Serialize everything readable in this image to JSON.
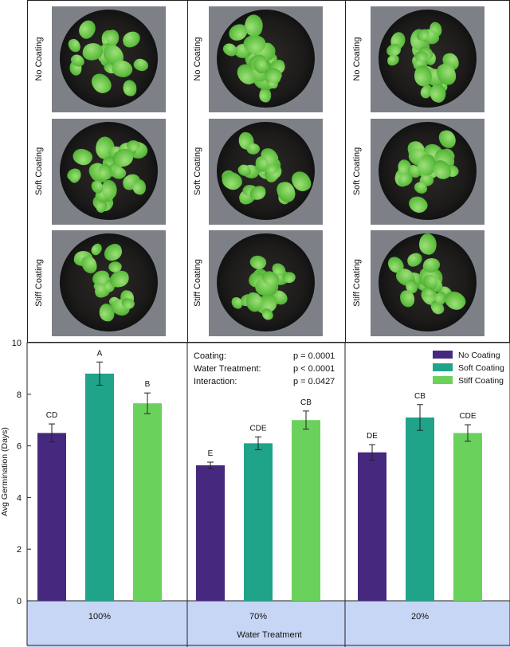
{
  "row_labels": [
    "No Coating",
    "Soft  Coating",
    "Stiff Coating"
  ],
  "stats": [
    {
      "label": "Coating:",
      "value": "p = 0.0001"
    },
    {
      "label": "Water Treatment:",
      "value": "p < 0.0001"
    },
    {
      "label": "Interaction:",
      "value": "p = 0.0427"
    }
  ],
  "colors": {
    "no_coating": "#46297f",
    "soft_coating": "#1fa389",
    "stiff_coating": "#6bd15d",
    "axis_band": "#c8d6f5"
  },
  "chart_data": {
    "type": "bar",
    "categories": [
      "100%",
      "70%",
      "20%"
    ],
    "series": [
      {
        "name": "No Coating",
        "values": [
          6.5,
          5.25,
          5.75
        ],
        "errors": [
          0.35,
          0.12,
          0.3
        ],
        "letters": [
          "CD",
          "E",
          "DE"
        ]
      },
      {
        "name": "Soft Coating",
        "values": [
          8.8,
          6.1,
          7.1
        ],
        "errors": [
          0.45,
          0.25,
          0.5
        ],
        "letters": [
          "A",
          "CDE",
          "CB"
        ]
      },
      {
        "name": "Stiff Coating",
        "values": [
          7.65,
          7.0,
          6.5
        ],
        "errors": [
          0.4,
          0.35,
          0.32
        ],
        "letters": [
          "B",
          "CB",
          "CDE"
        ]
      }
    ],
    "xlabel": "Water Treatment",
    "ylabel": "Avg Germination (Days)",
    "ylim": [
      0,
      10
    ],
    "yticks": [
      "0",
      "2",
      "4",
      "6",
      "8",
      "10"
    ],
    "legend": "top-right",
    "grid": false
  }
}
